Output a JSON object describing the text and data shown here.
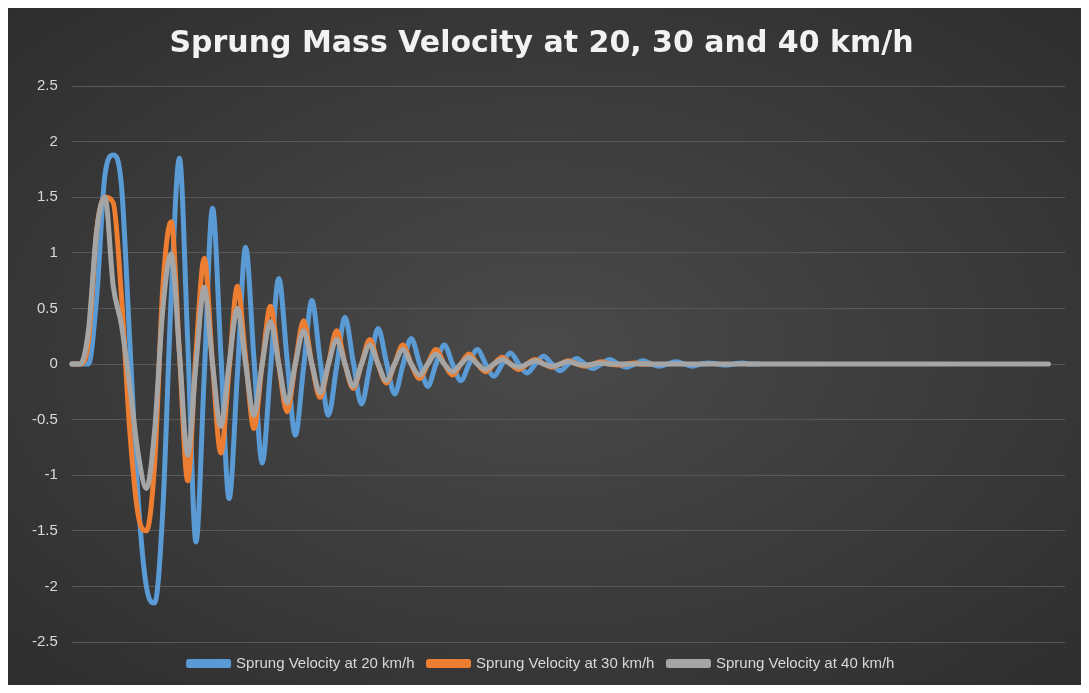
{
  "chart_data": {
    "type": "line",
    "title": "Sprung Mass Velocity at 20, 30 and 40 km/h",
    "categories": [
      null,
      null,
      null,
      null,
      null,
      null,
      null,
      null,
      null,
      null,
      null,
      null,
      null,
      null,
      null,
      null,
      null,
      null,
      null,
      null,
      null,
      null,
      null,
      null,
      null,
      null,
      null,
      null,
      null,
      null,
      null,
      null,
      null,
      null,
      null,
      null,
      null,
      null,
      null,
      null,
      null,
      null,
      null,
      null,
      null,
      null,
      null,
      null,
      null,
      null,
      null,
      null,
      null,
      null,
      null,
      null,
      null,
      null,
      null,
      null,
      null,
      null,
      null,
      null,
      null,
      null,
      null,
      null,
      null,
      null,
      null,
      null,
      null,
      null,
      null,
      null,
      null,
      null,
      null,
      null,
      null,
      null,
      null,
      null,
      null,
      null,
      null,
      null,
      null,
      null,
      null,
      null,
      null,
      null,
      null,
      null,
      null,
      null,
      null,
      null,
      null,
      null,
      null,
      null,
      null,
      null,
      null,
      null,
      null,
      null,
      null,
      null,
      null,
      null,
      null,
      null,
      null,
      null,
      null,
      null,
      null
    ],
    "series": [
      {
        "name": "Sprung Velocity at 20 km/h",
        "color": "#5b9bd5",
        "values": [
          0,
          0,
          0,
          0.6,
          1.7,
          1.88,
          1.6,
          0.2,
          -1.2,
          -2.0,
          -2.15,
          -1.3,
          0.6,
          1.85,
          0.2,
          -1.6,
          -0.1,
          1.4,
          0.1,
          -1.21,
          -0.1,
          1.05,
          0.05,
          -0.89,
          -0.05,
          0.77,
          0.05,
          -0.64,
          -0.03,
          0.57,
          0.03,
          -0.46,
          -0.02,
          0.42,
          0.02,
          -0.36,
          -0.02,
          0.32,
          0.02,
          -0.27,
          -0.01,
          0.23,
          0.01,
          -0.2,
          0,
          0.17,
          0,
          -0.15,
          0,
          0.13,
          0,
          -0.11,
          0,
          0.1,
          0,
          -0.08,
          0,
          0.07,
          0,
          -0.06,
          0,
          0.05,
          0,
          -0.04,
          0,
          0.04,
          0,
          -0.03,
          0,
          0.03,
          0,
          -0.02,
          0,
          0.02,
          0,
          -0.02,
          0,
          0.01,
          0,
          -0.01,
          0,
          0.01,
          0,
          0,
          null,
          null,
          null,
          null,
          null,
          null,
          null,
          null,
          null,
          null,
          null,
          null,
          null,
          null,
          null,
          null,
          null,
          null,
          null,
          null,
          null,
          null,
          null,
          null,
          null,
          null,
          null,
          null,
          null,
          null,
          null,
          null,
          null,
          null,
          null,
          null,
          null
        ]
      },
      {
        "name": "Sprung Velocity at 30 km/h",
        "color": "#ed7d31",
        "values": [
          0,
          0,
          0.2,
          1.2,
          1.5,
          1.45,
          0.6,
          -0.6,
          -1.35,
          -1.5,
          -0.9,
          0.7,
          1.28,
          0.1,
          -1.05,
          0.1,
          0.95,
          0,
          -0.8,
          -0.05,
          0.7,
          0.05,
          -0.58,
          0,
          0.52,
          0,
          -0.43,
          0,
          0.39,
          0,
          -0.3,
          0,
          0.3,
          0,
          -0.22,
          0,
          0.22,
          0,
          -0.17,
          0,
          0.17,
          0,
          -0.13,
          0,
          0.13,
          0,
          -0.1,
          0,
          0.09,
          0,
          -0.07,
          0,
          0.06,
          0,
          -0.05,
          0,
          0.04,
          0,
          -0.03,
          0,
          0.03,
          0,
          -0.02,
          0,
          0.02,
          0,
          -0.01,
          0,
          0.01,
          0,
          0,
          null,
          null,
          null,
          null,
          null,
          null,
          null,
          null,
          null,
          null,
          null,
          null,
          null,
          null,
          null,
          null,
          null,
          null,
          null,
          null,
          null,
          null,
          null,
          null,
          null,
          null,
          null,
          null,
          null,
          null,
          null,
          null,
          null,
          null,
          null,
          null,
          null,
          null,
          null,
          null,
          null,
          null,
          null,
          null,
          null,
          null,
          null,
          null,
          null,
          null
        ]
      },
      {
        "name": "Sprung Velocity at 40 km/h",
        "color": "#a5a5a5",
        "values": [
          0,
          0,
          0.3,
          1.2,
          1.5,
          0.7,
          0.35,
          -0.2,
          -0.8,
          -1.12,
          -0.6,
          0.5,
          0.99,
          0.1,
          -0.82,
          0,
          0.69,
          0,
          -0.56,
          0,
          0.5,
          0,
          -0.46,
          0,
          0.38,
          0,
          -0.35,
          0,
          0.3,
          0,
          -0.26,
          0,
          0.22,
          0,
          -0.2,
          0,
          0.17,
          0,
          -0.15,
          0,
          0.13,
          0,
          -0.1,
          0,
          0.09,
          0,
          -0.07,
          0,
          0.06,
          0,
          -0.05,
          0,
          0.04,
          0,
          -0.03,
          0,
          0.03,
          0,
          -0.02,
          0,
          0.02,
          0,
          -0.01,
          0,
          0.01,
          0,
          0,
          0,
          0,
          0,
          0,
          0,
          0,
          0,
          0,
          0,
          0,
          0,
          0,
          0,
          0,
          0,
          0,
          0,
          0,
          0,
          0,
          0,
          0,
          0,
          0,
          0,
          0,
          0,
          0,
          0,
          0,
          0,
          0,
          0,
          0,
          0,
          0,
          0,
          0,
          0,
          0,
          0,
          0,
          0,
          0,
          0,
          0,
          0,
          0,
          0,
          0,
          0,
          0,
          null,
          null
        ]
      }
    ],
    "ylim": [
      -2.5,
      2.5
    ],
    "yticks": [
      -2.5,
      -2,
      -1.5,
      -1,
      -0.5,
      0,
      0.5,
      1,
      1.5,
      2,
      2.5
    ],
    "grid": "y",
    "legend": "bottom",
    "tick_labels": "y"
  }
}
